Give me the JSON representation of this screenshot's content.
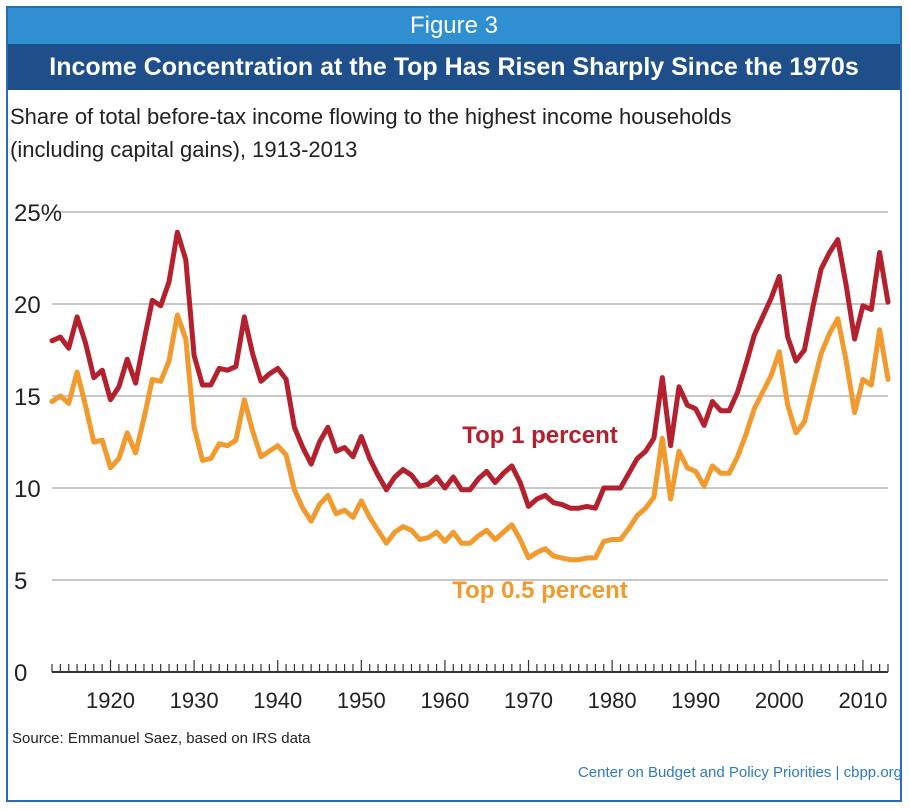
{
  "header": {
    "figure_label": "Figure 3",
    "title": "Income Concentration at the Top Has Risen Sharply Since the 1970s"
  },
  "subtitle": {
    "line1": "Share of total before-tax income flowing to the highest income households",
    "line2": "(including capital gains), 1913-2013"
  },
  "footer": {
    "source": "Source: Emmanuel Saez, based on IRS data",
    "credit": "Center on Budget and Policy Priorities | cbpp.org"
  },
  "colors": {
    "top1": "#b5202e",
    "top05": "#f29a2e",
    "grid": "#c8c8c8",
    "header_light": "#2f8fd0",
    "header_dark": "#1f4f8a"
  },
  "chart_data": {
    "type": "line",
    "xlim": [
      1913,
      2013
    ],
    "ylim": [
      0,
      25
    ],
    "grid": true,
    "y_ticks": [
      {
        "value": 0,
        "label": "0"
      },
      {
        "value": 5,
        "label": "5"
      },
      {
        "value": 10,
        "label": "10"
      },
      {
        "value": 15,
        "label": "15"
      },
      {
        "value": 20,
        "label": "20"
      },
      {
        "value": 25,
        "label": "25%"
      }
    ],
    "x_ticks": [
      {
        "value": 1920,
        "label": "1920"
      },
      {
        "value": 1930,
        "label": "1930"
      },
      {
        "value": 1940,
        "label": "1940"
      },
      {
        "value": 1950,
        "label": "1950"
      },
      {
        "value": 1960,
        "label": "1960"
      },
      {
        "value": 1970,
        "label": "1970"
      },
      {
        "value": 1980,
        "label": "1980"
      },
      {
        "value": 1990,
        "label": "1990"
      },
      {
        "value": 2000,
        "label": "2000"
      },
      {
        "value": 2010,
        "label": "2010"
      }
    ],
    "x": [
      1913,
      1914,
      1915,
      1916,
      1917,
      1918,
      1919,
      1920,
      1921,
      1922,
      1923,
      1924,
      1925,
      1926,
      1927,
      1928,
      1929,
      1930,
      1931,
      1932,
      1933,
      1934,
      1935,
      1936,
      1937,
      1938,
      1939,
      1940,
      1941,
      1942,
      1943,
      1944,
      1945,
      1946,
      1947,
      1948,
      1949,
      1950,
      1951,
      1952,
      1953,
      1954,
      1955,
      1956,
      1957,
      1958,
      1959,
      1960,
      1961,
      1962,
      1963,
      1964,
      1965,
      1966,
      1967,
      1968,
      1969,
      1970,
      1971,
      1972,
      1973,
      1974,
      1975,
      1976,
      1977,
      1978,
      1979,
      1980,
      1981,
      1982,
      1983,
      1984,
      1985,
      1986,
      1987,
      1988,
      1989,
      1990,
      1991,
      1992,
      1993,
      1994,
      1995,
      1996,
      1997,
      1998,
      1999,
      2000,
      2001,
      2002,
      2003,
      2004,
      2005,
      2006,
      2007,
      2008,
      2009,
      2010,
      2011,
      2012,
      2013
    ],
    "series": [
      {
        "name": "Top 1 percent",
        "values": [
          18.0,
          18.2,
          17.6,
          19.3,
          17.9,
          16.0,
          16.4,
          14.8,
          15.5,
          17.0,
          15.7,
          18.0,
          20.2,
          19.9,
          21.2,
          23.9,
          22.4,
          17.2,
          15.6,
          15.6,
          16.5,
          16.4,
          16.6,
          19.3,
          17.3,
          15.8,
          16.2,
          16.5,
          15.9,
          13.3,
          12.2,
          11.3,
          12.5,
          13.3,
          12.0,
          12.2,
          11.7,
          12.8,
          11.6,
          10.7,
          9.9,
          10.6,
          11.0,
          10.7,
          10.1,
          10.2,
          10.6,
          10.0,
          10.6,
          9.9,
          9.9,
          10.5,
          10.9,
          10.3,
          10.8,
          11.2,
          10.3,
          9.0,
          9.4,
          9.6,
          9.2,
          9.1,
          8.9,
          8.9,
          9.0,
          8.9,
          10.0,
          10.0,
          10.0,
          10.8,
          11.6,
          12.0,
          12.7,
          16.0,
          12.3,
          15.5,
          14.5,
          14.3,
          13.4,
          14.7,
          14.2,
          14.2,
          15.2,
          16.7,
          18.3,
          19.3,
          20.3,
          21.5,
          18.2,
          16.9,
          17.5,
          19.8,
          21.9,
          22.8,
          23.5,
          21.0,
          18.1,
          19.9,
          19.7,
          22.8,
          20.1
        ]
      },
      {
        "name": "Top 0.5 percent",
        "values": [
          14.7,
          15.0,
          14.6,
          16.3,
          14.5,
          12.5,
          12.6,
          11.1,
          11.6,
          13.0,
          11.9,
          13.8,
          15.9,
          15.8,
          16.9,
          19.4,
          18.1,
          13.3,
          11.5,
          11.6,
          12.4,
          12.3,
          12.6,
          14.8,
          13.1,
          11.7,
          12.0,
          12.3,
          11.8,
          9.9,
          8.9,
          8.2,
          9.1,
          9.6,
          8.6,
          8.8,
          8.4,
          9.3,
          8.4,
          7.7,
          7.0,
          7.6,
          7.9,
          7.7,
          7.2,
          7.3,
          7.6,
          7.1,
          7.6,
          7.0,
          7.0,
          7.4,
          7.7,
          7.2,
          7.6,
          8.0,
          7.2,
          6.2,
          6.5,
          6.7,
          6.3,
          6.2,
          6.1,
          6.1,
          6.2,
          6.2,
          7.1,
          7.2,
          7.2,
          7.8,
          8.5,
          8.9,
          9.5,
          12.7,
          9.4,
          12.0,
          11.1,
          10.9,
          10.1,
          11.2,
          10.8,
          10.8,
          11.7,
          12.9,
          14.3,
          15.2,
          16.1,
          17.4,
          14.5,
          13.0,
          13.6,
          15.5,
          17.3,
          18.4,
          19.2,
          16.9,
          14.1,
          15.9,
          15.6,
          18.6,
          15.9
        ]
      }
    ],
    "annotations": [
      {
        "text": "Top 1 percent",
        "series": 0
      },
      {
        "text": "Top 0.5 percent",
        "series": 1
      }
    ]
  }
}
